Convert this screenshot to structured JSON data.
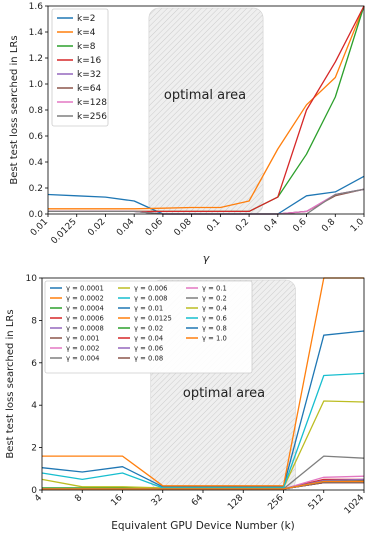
{
  "chart_data": [
    {
      "type": "line",
      "title": "",
      "xlabel": "γ",
      "ylabel": "Best test loss searched in LRs",
      "x": [
        "0.01",
        "0.0125",
        "0.02",
        "0.04",
        "0.06",
        "0.08",
        "0.1",
        "0.2",
        "0.4",
        "0.6",
        "0.8",
        "1.0"
      ],
      "ylim": [
        0,
        1.6
      ],
      "yticks": [
        "0.0",
        "0.2",
        "0.4",
        "0.6",
        "0.8",
        "1.0",
        "1.2",
        "1.4",
        "1.6"
      ],
      "legend_placement": "top-left",
      "annotation": "optimal area",
      "shaded_x_range": [
        "0.06",
        "0.2"
      ],
      "series": [
        {
          "name": "k=2",
          "color": "#1f77b4",
          "values": [
            0.15,
            0.14,
            0.13,
            0.1,
            0.0,
            0.0,
            0.0,
            0.0,
            0.0,
            0.14,
            0.17,
            0.29
          ]
        },
        {
          "name": "k=4",
          "color": "#ff7f0e",
          "values": [
            0.04,
            0.04,
            0.04,
            0.04,
            0.045,
            0.05,
            0.05,
            0.1,
            0.5,
            0.84,
            1.05,
            1.6
          ]
        },
        {
          "name": "k=8",
          "color": "#2ca02c",
          "values": [
            0.02,
            0.02,
            0.02,
            0.02,
            0.02,
            0.02,
            0.02,
            0.02,
            0.13,
            0.46,
            0.9,
            1.6
          ]
        },
        {
          "name": "k=16",
          "color": "#d62728",
          "values": [
            0.02,
            0.02,
            0.02,
            0.02,
            0.02,
            0.02,
            0.02,
            0.02,
            0.13,
            0.8,
            1.17,
            1.6
          ]
        },
        {
          "name": "k=32",
          "color": "#9467bd",
          "values": [
            0.02,
            0.02,
            0.02,
            0.02,
            0.0,
            0.0,
            0.0,
            0.0,
            0.0,
            0.02,
            0.15,
            0.19
          ]
        },
        {
          "name": "k=64",
          "color": "#8c564b",
          "values": [
            0.02,
            0.02,
            0.02,
            0.02,
            0.0,
            0.0,
            0.0,
            0.0,
            0.0,
            0.02,
            0.14,
            0.19
          ]
        },
        {
          "name": "k=128",
          "color": "#e377c2",
          "values": [
            0.02,
            0.02,
            0.02,
            0.02,
            0.0,
            0.0,
            0.0,
            0.0,
            0.0,
            0.02,
            0.15,
            0.19
          ]
        },
        {
          "name": "k=256",
          "color": "#7f7f7f",
          "values": [
            0.02,
            0.02,
            0.02,
            0.02,
            0.0,
            0.0,
            0.0,
            0.0,
            0.0,
            0.0,
            0.15,
            0.19
          ]
        }
      ]
    },
    {
      "type": "line",
      "title": "",
      "xlabel": "Equivalent GPU Device Number (k)",
      "ylabel": "Best test loss searched in LRs",
      "x": [
        "4",
        "8",
        "16",
        "32",
        "64",
        "128",
        "256",
        "512",
        "1024"
      ],
      "ylim": [
        0,
        10
      ],
      "yticks": [
        "0",
        "2",
        "4",
        "6",
        "8",
        "10"
      ],
      "legend_placement": "top-left",
      "legend_columns": 3,
      "annotation": "optimal area",
      "shaded_x_range": [
        "32",
        "256"
      ],
      "series": [
        {
          "name": "γ = 0.0001",
          "color": "#1f77b4",
          "values": [
            1.05,
            0.85,
            1.1,
            0.15,
            0.15,
            0.15,
            0.15,
            7.3,
            7.5
          ]
        },
        {
          "name": "γ = 0.0002",
          "color": "#ff7f0e",
          "values": [
            1.6,
            1.6,
            1.6,
            0.2,
            0.2,
            0.2,
            0.2,
            10.0,
            10.0
          ]
        },
        {
          "name": "γ = 0.0004",
          "color": "#2ca02c",
          "values": [
            0.1,
            0.1,
            0.1,
            0.05,
            0.05,
            0.05,
            0.05,
            0.4,
            0.4
          ]
        },
        {
          "name": "γ = 0.0006",
          "color": "#d62728",
          "values": [
            0.05,
            0.05,
            0.05,
            0.05,
            0.05,
            0.05,
            0.05,
            0.5,
            0.5
          ]
        },
        {
          "name": "γ = 0.0008",
          "color": "#9467bd",
          "values": [
            0.05,
            0.05,
            0.05,
            0.05,
            0.05,
            0.05,
            0.05,
            0.45,
            0.5
          ]
        },
        {
          "name": "γ = 0.001",
          "color": "#8c564b",
          "values": [
            0.05,
            0.05,
            0.05,
            0.05,
            0.05,
            0.05,
            0.05,
            0.4,
            0.45
          ]
        },
        {
          "name": "γ = 0.002",
          "color": "#e377c2",
          "values": [
            0.05,
            0.05,
            0.05,
            0.05,
            0.05,
            0.05,
            0.05,
            0.6,
            0.65
          ]
        },
        {
          "name": "γ = 0.004",
          "color": "#7f7f7f",
          "values": [
            0.05,
            0.05,
            0.05,
            0.05,
            0.05,
            0.05,
            0.05,
            1.6,
            1.5
          ]
        },
        {
          "name": "γ = 0.006",
          "color": "#bcbd22",
          "values": [
            0.5,
            0.15,
            0.15,
            0.1,
            0.1,
            0.1,
            0.1,
            4.2,
            4.15
          ]
        },
        {
          "name": "γ = 0.008",
          "color": "#17becf",
          "values": [
            0.8,
            0.5,
            0.8,
            0.1,
            0.1,
            0.1,
            0.1,
            5.4,
            5.5
          ]
        },
        {
          "name": "γ = 0.01",
          "color": "#1f77b4",
          "values": [
            0.05,
            0.05,
            0.05,
            0.05,
            0.05,
            0.05,
            0.05,
            0.35,
            0.4
          ]
        },
        {
          "name": "γ = 0.0125",
          "color": "#ff7f0e",
          "values": [
            0.05,
            0.05,
            0.05,
            0.05,
            0.05,
            0.05,
            0.05,
            0.35,
            0.4
          ]
        },
        {
          "name": "γ = 0.02",
          "color": "#2ca02c",
          "values": [
            0.05,
            0.05,
            0.05,
            0.05,
            0.05,
            0.05,
            0.05,
            0.35,
            0.35
          ]
        },
        {
          "name": "γ = 0.04",
          "color": "#d62728",
          "values": [
            0.05,
            0.05,
            0.05,
            0.05,
            0.05,
            0.05,
            0.05,
            0.35,
            0.35
          ]
        },
        {
          "name": "γ = 0.06",
          "color": "#9467bd",
          "values": [
            0.05,
            0.05,
            0.05,
            0.05,
            0.05,
            0.05,
            0.05,
            0.35,
            0.35
          ]
        },
        {
          "name": "γ = 0.08",
          "color": "#8c564b",
          "values": [
            0.05,
            0.05,
            0.05,
            0.05,
            0.05,
            0.05,
            0.05,
            0.35,
            0.35
          ]
        },
        {
          "name": "γ = 0.1",
          "color": "#e377c2",
          "values": [
            0.05,
            0.05,
            0.05,
            0.05,
            0.05,
            0.05,
            0.05,
            0.4,
            0.4
          ]
        },
        {
          "name": "γ = 0.2",
          "color": "#7f7f7f",
          "values": [
            0.05,
            0.05,
            0.05,
            0.05,
            0.05,
            0.05,
            0.05,
            0.4,
            0.4
          ]
        },
        {
          "name": "γ = 0.4",
          "color": "#bcbd22",
          "values": [
            0.05,
            0.05,
            0.05,
            0.05,
            0.05,
            0.05,
            0.05,
            0.4,
            0.4
          ]
        },
        {
          "name": "γ = 0.6",
          "color": "#17becf",
          "values": [
            0.05,
            0.05,
            0.05,
            0.05,
            0.05,
            0.05,
            0.05,
            0.4,
            0.4
          ]
        },
        {
          "name": "γ = 0.8",
          "color": "#1f77b4",
          "values": [
            0.05,
            0.05,
            0.05,
            0.05,
            0.05,
            0.05,
            0.05,
            0.4,
            0.4
          ]
        },
        {
          "name": "γ = 1.0",
          "color": "#ff7f0e",
          "values": [
            0.05,
            0.05,
            0.05,
            0.05,
            0.05,
            0.05,
            0.05,
            0.4,
            0.4
          ]
        }
      ]
    }
  ]
}
